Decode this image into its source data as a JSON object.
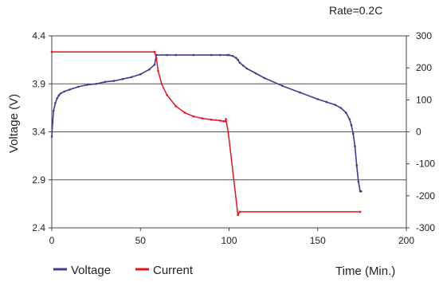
{
  "chart_data": {
    "type": "line",
    "annotation": "Rate=0.2C",
    "xlabel": "Time (Min.)",
    "ylabel": "Voltage (V)",
    "xlim": [
      0,
      200
    ],
    "ylim": [
      2.4,
      4.4
    ],
    "y2lim": [
      -300,
      300
    ],
    "x_ticks": [
      "0",
      "50",
      "100",
      "150",
      "200"
    ],
    "y_ticks": [
      "2.4",
      "2.9",
      "3.4",
      "3.9",
      "4.4"
    ],
    "y2_ticks": [
      "-300",
      "-200",
      "-100",
      "0",
      "100",
      "200",
      "300"
    ],
    "grid": "horizontal",
    "legend_position": "bottom-left",
    "series": [
      {
        "name": "Voltage",
        "axis": "left",
        "color": "#3d3d8f",
        "x": [
          0,
          0.5,
          1,
          2,
          3,
          4,
          5,
          7,
          10,
          15,
          20,
          25,
          30,
          35,
          40,
          45,
          50,
          55,
          58,
          59,
          65,
          70,
          80,
          90,
          95,
          99,
          100,
          102,
          104,
          105,
          106,
          108,
          110,
          115,
          120,
          130,
          140,
          150,
          155,
          160,
          163,
          166,
          168,
          169,
          170,
          171,
          172,
          173,
          174,
          174.5
        ],
        "y": [
          3.35,
          3.5,
          3.62,
          3.7,
          3.75,
          3.78,
          3.8,
          3.82,
          3.84,
          3.87,
          3.89,
          3.9,
          3.92,
          3.93,
          3.95,
          3.97,
          4.0,
          4.05,
          4.1,
          4.2,
          4.2,
          4.2,
          4.2,
          4.2,
          4.2,
          4.2,
          4.2,
          4.19,
          4.17,
          4.15,
          4.12,
          4.09,
          4.06,
          4.01,
          3.96,
          3.88,
          3.81,
          3.74,
          3.71,
          3.68,
          3.65,
          3.6,
          3.53,
          3.47,
          3.38,
          3.25,
          3.05,
          2.88,
          2.78,
          2.78
        ]
      },
      {
        "name": "Current",
        "axis": "right",
        "color": "#e8131b",
        "x": [
          0,
          58,
          59,
          60,
          62,
          65,
          70,
          75,
          80,
          85,
          90,
          95,
          97,
          98,
          98.2,
          99.5,
          105,
          106,
          174
        ],
        "y": [
          250,
          250,
          230,
          190,
          150,
          115,
          80,
          60,
          48,
          42,
          38,
          35,
          33,
          33,
          40,
          0,
          -260,
          -250,
          -250
        ]
      }
    ]
  }
}
